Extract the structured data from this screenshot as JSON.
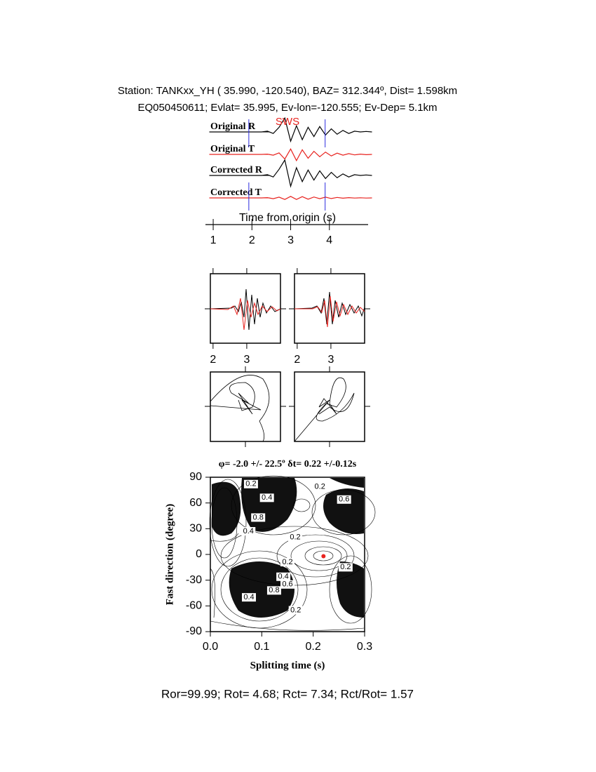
{
  "header": {
    "station": "Station: TANKxx_YH ( 35.990, -120.540), BAZ=  312.344º, Dist=    1.598km",
    "event": "EQ050450611; Evlat=  35.995, Ev-lon=-120.555; Ev-Dep=  5.1km"
  },
  "chart_data": [
    {
      "type": "line",
      "annotation": "SWS",
      "annotation_color": "#e8231f",
      "xlabel": "Time from origin (s)",
      "xlim": [
        0.8,
        5.0
      ],
      "xticks": [
        1,
        2,
        3,
        4
      ],
      "markers": [
        1.92,
        3.89
      ],
      "marker_color": "#2a2adf",
      "x": [
        0.9,
        1.05,
        1.2,
        1.35,
        1.5,
        1.65,
        1.8,
        1.95,
        2.1,
        2.25,
        2.4,
        2.55,
        2.7,
        2.85,
        3.0,
        3.15,
        3.3,
        3.45,
        3.6,
        3.75,
        3.9,
        4.05,
        4.2,
        4.35,
        4.5,
        4.65,
        4.8,
        4.95,
        5.1
      ],
      "series": [
        {
          "name": "Original R",
          "color": "#000000",
          "values": [
            0,
            0,
            0,
            0,
            0,
            0,
            0,
            0,
            0,
            0,
            0.05,
            -0.1,
            0.3,
            0.9,
            -0.6,
            0.4,
            -0.5,
            0.3,
            -0.3,
            0.35,
            -0.2,
            0.2,
            -0.15,
            0.1,
            -0.1,
            0.05,
            0,
            0.03,
            0
          ]
        },
        {
          "name": "Original T",
          "color": "#e8231f",
          "values": [
            0,
            0,
            0,
            0,
            0,
            0,
            0,
            0,
            0,
            0,
            0.02,
            -0.05,
            0.1,
            -0.3,
            0.35,
            -0.4,
            0.3,
            -0.25,
            0.2,
            -0.15,
            0.15,
            -0.1,
            0.08,
            -0.05,
            0.05,
            -0.03,
            0.02,
            -0.02,
            0
          ]
        },
        {
          "name": "Corrected R",
          "color": "#000000",
          "values": [
            0,
            0,
            0,
            0,
            0,
            0,
            0,
            0,
            0,
            0,
            0.05,
            -0.1,
            0.4,
            1,
            -0.7,
            0.5,
            -0.4,
            0.35,
            -0.3,
            0.3,
            -0.2,
            0.2,
            -0.15,
            0.1,
            -0.1,
            0.05,
            0,
            0.03,
            0
          ]
        },
        {
          "name": "Corrected T",
          "color": "#e8231f",
          "values": [
            0,
            0,
            0,
            0,
            0,
            0,
            0,
            0,
            0,
            0,
            0.02,
            -0.05,
            0.05,
            -0.1,
            0.1,
            -0.1,
            0.08,
            -0.08,
            0.06,
            -0.05,
            0.05,
            -0.04,
            0.03,
            -0.02,
            0.02,
            -0.01,
            0.01,
            -0.01,
            0
          ]
        }
      ]
    },
    {
      "type": "comparison",
      "xlim": [
        1.92,
        4.0
      ],
      "xticks": [
        2,
        3
      ]
    },
    {
      "type": "contour",
      "title": "φ= -2.0 +/- 22.5º δt= 0.22 +/-0.12s",
      "xlabel": "Splitting time (s)",
      "ylabel": "Fast direction (degree)",
      "xlim": [
        0,
        0.3
      ],
      "xticks": [
        {
          "value": 0,
          "label": "0.0"
        },
        {
          "value": 0.1,
          "label": "0.1"
        },
        {
          "value": 0.2,
          "label": "0.2"
        },
        {
          "value": 0.3,
          "label": "0.3"
        }
      ],
      "ylim": [
        -90,
        90
      ],
      "yticks": [
        -90,
        -60,
        -30,
        0,
        30,
        60,
        90
      ],
      "best": {
        "x": 0.22,
        "y": -2,
        "color": "#e8231f"
      },
      "contour_labels": [
        {
          "label": "0.2",
          "x": 0.079,
          "y": 82
        },
        {
          "label": "0.2",
          "x": 0.213,
          "y": 79
        },
        {
          "label": "0.4",
          "x": 0.11,
          "y": 66
        },
        {
          "label": "0.6",
          "x": 0.26,
          "y": 64
        },
        {
          "label": "0.8",
          "x": 0.093,
          "y": 43
        },
        {
          "label": "0.4",
          "x": 0.074,
          "y": 27
        },
        {
          "label": "0.2",
          "x": 0.165,
          "y": 20
        },
        {
          "label": "0.2",
          "x": 0.15,
          "y": -9
        },
        {
          "label": "0.4",
          "x": 0.142,
          "y": -26
        },
        {
          "label": "0.6",
          "x": 0.15,
          "y": -35
        },
        {
          "label": "0.8",
          "x": 0.124,
          "y": -42
        },
        {
          "label": "0.4",
          "x": 0.075,
          "y": -50
        },
        {
          "label": "0.2",
          "x": 0.166,
          "y": -65
        },
        {
          "label": "0.2",
          "x": 0.263,
          "y": -15
        }
      ]
    }
  ],
  "footer": "Ror=99.99; Rot= 4.68; Rct= 7.34; Rct/Rot= 1.57"
}
